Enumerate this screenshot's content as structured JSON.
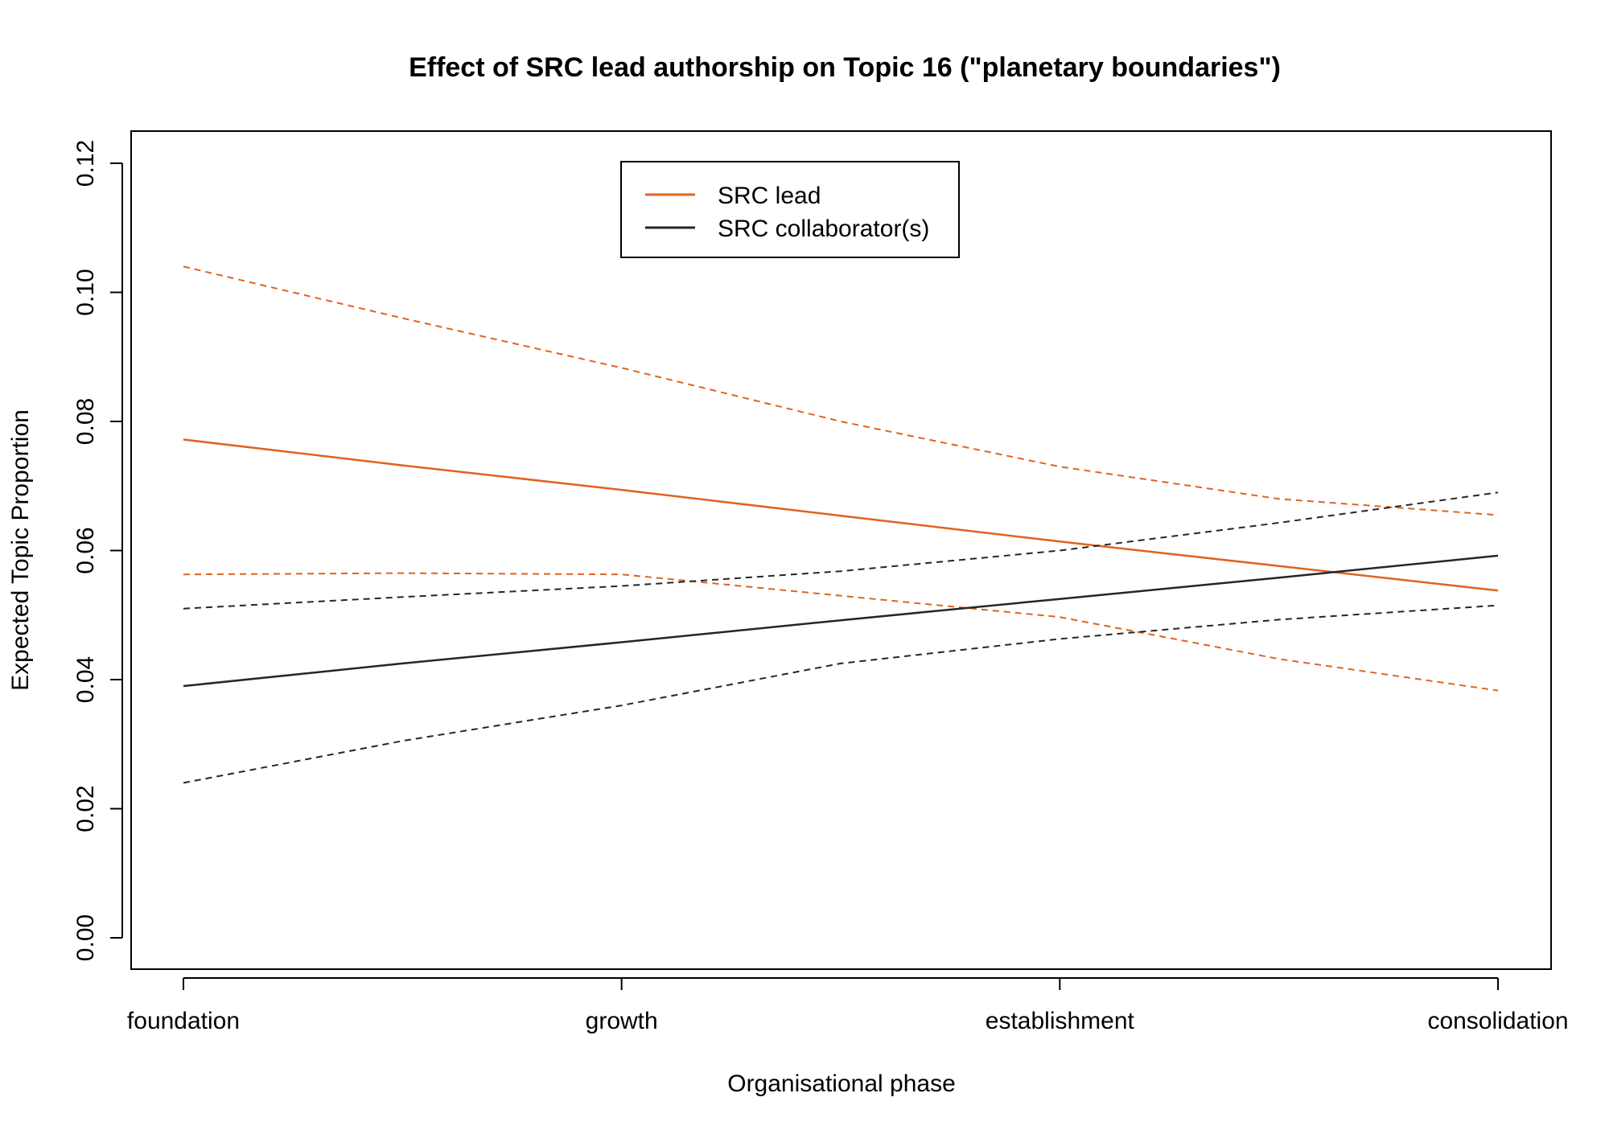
{
  "chart_data": {
    "type": "line",
    "title": "Effect of SRC lead authorship on Topic 16 (\"planetary boundaries\")",
    "xlabel": "Organisational phase",
    "ylabel": "Expected Topic Proportion",
    "categories": [
      "foundation",
      "growth",
      "establishment",
      "consolidation"
    ],
    "x": [
      1,
      1.5,
      2,
      2.5,
      3,
      3.5,
      4
    ],
    "ylim": [
      0,
      0.12
    ],
    "yticks": [
      "0.00",
      "0.02",
      "0.04",
      "0.06",
      "0.08",
      "0.10",
      "0.12"
    ],
    "grid": false,
    "legend_position": "top-center",
    "series": [
      {
        "name": "SRC lead",
        "color": "#E0631E",
        "values": [
          0.0772,
          0.0732,
          0.0694,
          0.0654,
          0.0614,
          0.0576,
          0.0538
        ],
        "ci_lower": [
          0.0563,
          0.0565,
          0.0563,
          0.053,
          0.0497,
          0.0432,
          0.0383
        ],
        "ci_upper": [
          0.104,
          0.096,
          0.0883,
          0.08,
          0.073,
          0.068,
          0.0655
        ]
      },
      {
        "name": "SRC collaborator(s)",
        "color": "#262626",
        "values": [
          0.039,
          0.0425,
          0.0458,
          0.0492,
          0.0525,
          0.0558,
          0.0592
        ],
        "ci_lower": [
          0.024,
          0.0305,
          0.036,
          0.0425,
          0.0463,
          0.0493,
          0.0515
        ],
        "ci_upper": [
          0.051,
          0.0528,
          0.0545,
          0.0568,
          0.06,
          0.0643,
          0.069
        ]
      }
    ]
  }
}
